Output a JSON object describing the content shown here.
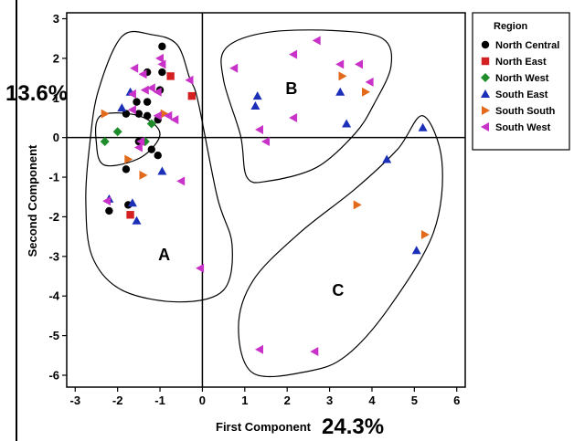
{
  "chart_data": {
    "type": "scatter",
    "xlabel": "First Component",
    "ylabel": "Second Component",
    "x_variance_label": "24.3%",
    "y_variance_label": "13.6%",
    "xlim": [
      -3.2,
      6.2
    ],
    "ylim": [
      -6.3,
      3.15
    ],
    "x_ticks": [
      "-3",
      "-2",
      "-1",
      "0",
      "1",
      "2",
      "3",
      "4",
      "5",
      "6"
    ],
    "y_ticks": [
      "3",
      "2",
      "1",
      "0",
      "-1",
      "-2",
      "-3",
      "-4",
      "-5",
      "-6"
    ],
    "reference_lines": {
      "x": 0,
      "y": 0
    },
    "legend": {
      "title": "Region",
      "placement": "top-right"
    },
    "group_labels": [
      {
        "text": "A",
        "x": -0.9,
        "y": -3.1
      },
      {
        "text": "B",
        "x": 2.1,
        "y": 1.1
      },
      {
        "text": "C",
        "x": 3.2,
        "y": -4.0
      }
    ],
    "series": [
      {
        "name": "North Central",
        "marker": "circle",
        "color": "#000000",
        "points": [
          [
            -0.95,
            2.3
          ],
          [
            -1.3,
            1.65
          ],
          [
            -0.95,
            1.65
          ],
          [
            -1.0,
            1.2
          ],
          [
            -1.3,
            0.9
          ],
          [
            -1.55,
            0.9
          ],
          [
            -1.8,
            0.6
          ],
          [
            -1.5,
            0.6
          ],
          [
            -1.3,
            0.55
          ],
          [
            -1.05,
            0.45
          ],
          [
            -1.5,
            -0.1
          ],
          [
            -1.2,
            -0.3
          ],
          [
            -1.05,
            -0.45
          ],
          [
            -1.8,
            -0.8
          ],
          [
            -1.75,
            -1.7
          ],
          [
            -2.2,
            -1.85
          ]
        ]
      },
      {
        "name": "North East",
        "marker": "square",
        "color": "#d42020",
        "points": [
          [
            -0.75,
            1.55
          ],
          [
            -0.25,
            1.05
          ],
          [
            -1.7,
            -1.95
          ]
        ]
      },
      {
        "name": "North West",
        "marker": "diamond",
        "color": "#1e8c2a",
        "points": [
          [
            -1.2,
            0.35
          ],
          [
            -2.3,
            -0.1
          ],
          [
            -2.0,
            0.15
          ],
          [
            -1.35,
            -0.1
          ]
        ]
      },
      {
        "name": "South East",
        "marker": "triangle-up",
        "color": "#1b2fb8",
        "points": [
          [
            -1.7,
            1.15
          ],
          [
            -1.9,
            0.75
          ],
          [
            -0.95,
            -0.85
          ],
          [
            -2.2,
            -1.55
          ],
          [
            -1.65,
            -1.65
          ],
          [
            -1.55,
            -2.1
          ],
          [
            1.3,
            1.05
          ],
          [
            1.25,
            0.8
          ],
          [
            3.25,
            1.15
          ],
          [
            3.4,
            0.35
          ],
          [
            4.35,
            -0.55
          ],
          [
            5.2,
            0.25
          ],
          [
            5.05,
            -2.85
          ]
        ]
      },
      {
        "name": "South South",
        "marker": "triangle-right",
        "color": "#e26a1a",
        "points": [
          [
            -2.3,
            0.6
          ],
          [
            -0.9,
            0.6
          ],
          [
            -1.4,
            -0.95
          ],
          [
            -1.75,
            -0.55
          ],
          [
            3.3,
            1.55
          ],
          [
            3.85,
            1.15
          ],
          [
            3.65,
            -1.7
          ],
          [
            5.25,
            -2.45
          ]
        ]
      },
      {
        "name": "South West",
        "marker": "triangle-left",
        "color": "#c832c8",
        "points": [
          [
            -1.6,
            1.75
          ],
          [
            -1.0,
            2.0
          ],
          [
            -0.95,
            1.85
          ],
          [
            -1.4,
            1.6
          ],
          [
            -1.2,
            1.25
          ],
          [
            -1.35,
            1.2
          ],
          [
            -1.65,
            1.1
          ],
          [
            -1.05,
            1.15
          ],
          [
            -0.3,
            1.45
          ],
          [
            -1.65,
            0.7
          ],
          [
            -1.05,
            0.55
          ],
          [
            -0.8,
            0.55
          ],
          [
            -1.45,
            -0.1
          ],
          [
            -1.5,
            -0.25
          ],
          [
            -0.65,
            0.45
          ],
          [
            -0.5,
            -1.1
          ],
          [
            -2.25,
            -1.6
          ],
          [
            -0.05,
            -3.3
          ],
          [
            0.75,
            1.75
          ],
          [
            2.15,
            2.1
          ],
          [
            2.7,
            2.45
          ],
          [
            3.25,
            1.85
          ],
          [
            3.95,
            1.4
          ],
          [
            3.7,
            1.85
          ],
          [
            1.35,
            0.2
          ],
          [
            1.5,
            -0.1
          ],
          [
            2.15,
            0.5
          ],
          [
            1.35,
            -5.35
          ],
          [
            2.65,
            -5.4
          ]
        ]
      }
    ],
    "group_outlines": [
      {
        "group": "A",
        "points": [
          [
            -1.9,
            2.55
          ],
          [
            -1.2,
            2.6
          ],
          [
            -0.6,
            2.35
          ],
          [
            -0.3,
            1.5
          ],
          [
            -0.1,
            0.9
          ],
          [
            0.35,
            -1.5
          ],
          [
            0.7,
            -2.7
          ],
          [
            0.5,
            -3.85
          ],
          [
            -0.55,
            -4.15
          ],
          [
            -1.9,
            -3.85
          ],
          [
            -2.6,
            -3.0
          ],
          [
            -2.75,
            -1.6
          ],
          [
            -2.65,
            -0.1
          ],
          [
            -2.45,
            1.2
          ]
        ]
      },
      {
        "group": "B",
        "points": [
          [
            0.55,
            2.25
          ],
          [
            1.5,
            2.65
          ],
          [
            3.1,
            2.7
          ],
          [
            4.25,
            2.5
          ],
          [
            4.45,
            1.8
          ],
          [
            4.05,
            0.85
          ],
          [
            3.6,
            0.1
          ],
          [
            2.7,
            -0.75
          ],
          [
            1.55,
            -1.1
          ],
          [
            1.05,
            -1.0
          ],
          [
            0.9,
            0.05
          ],
          [
            0.5,
            1.45
          ]
        ]
      },
      {
        "group": "C",
        "points": [
          [
            5.2,
            0.55
          ],
          [
            5.65,
            -0.6
          ],
          [
            5.45,
            -2.4
          ],
          [
            4.4,
            -4.3
          ],
          [
            3.4,
            -5.5
          ],
          [
            2.5,
            -5.9
          ],
          [
            1.2,
            -5.95
          ],
          [
            0.85,
            -4.8
          ],
          [
            1.2,
            -3.6
          ],
          [
            2.3,
            -2.4
          ],
          [
            3.6,
            -1.3
          ],
          [
            4.6,
            -0.3
          ]
        ]
      },
      {
        "group": "A-inner",
        "points": [
          [
            -2.4,
            0.55
          ],
          [
            -1.5,
            0.55
          ],
          [
            -1.0,
            0.1
          ],
          [
            -1.45,
            -0.5
          ],
          [
            -2.3,
            -0.7
          ],
          [
            -2.5,
            -0.15
          ]
        ]
      }
    ]
  }
}
